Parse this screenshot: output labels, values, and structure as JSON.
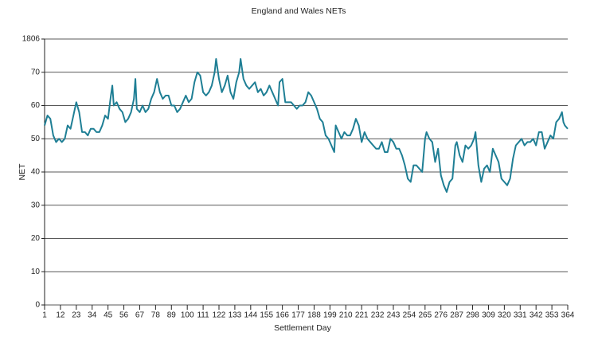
{
  "chart_data": {
    "type": "line",
    "title": "England and Wales NETs",
    "xlabel": "Settlement Day",
    "ylabel": "NET",
    "x": [
      1,
      3,
      5,
      7,
      9,
      11,
      13,
      15,
      17,
      19,
      21,
      23,
      25,
      27,
      29,
      31,
      33,
      35,
      37,
      39,
      41,
      43,
      45,
      47,
      48,
      49,
      51,
      53,
      55,
      57,
      59,
      61,
      63,
      64,
      65,
      67,
      69,
      71,
      73,
      75,
      77,
      79,
      81,
      83,
      85,
      87,
      89,
      91,
      93,
      95,
      97,
      99,
      101,
      103,
      105,
      107,
      109,
      111,
      113,
      115,
      117,
      119,
      120,
      122,
      124,
      126,
      128,
      130,
      132,
      134,
      136,
      137,
      139,
      141,
      143,
      145,
      147,
      149,
      151,
      153,
      155,
      157,
      159,
      161,
      163,
      164,
      166,
      168,
      170,
      172,
      174,
      176,
      178,
      180,
      182,
      184,
      186,
      188,
      190,
      192,
      194,
      196,
      198,
      200,
      202,
      203,
      205,
      207,
      209,
      211,
      213,
      215,
      217,
      219,
      221,
      223,
      225,
      227,
      229,
      231,
      233,
      235,
      237,
      239,
      241,
      243,
      245,
      247,
      249,
      251,
      253,
      255,
      257,
      259,
      261,
      263,
      265,
      266,
      268,
      270,
      272,
      274,
      276,
      278,
      280,
      282,
      284,
      286,
      287,
      289,
      291,
      293,
      295,
      297,
      299,
      300,
      302,
      304,
      306,
      308,
      310,
      312,
      314,
      316,
      318,
      320,
      322,
      324,
      326,
      328,
      330,
      332,
      334,
      336,
      338,
      340,
      342,
      344,
      346,
      348,
      350,
      352,
      354,
      356,
      358,
      360,
      361,
      362,
      364
    ],
    "series": [
      {
        "name": "NET",
        "color": "#1f7f95",
        "values": [
          54,
          57,
          56,
          51,
          49,
          50,
          49,
          50,
          54,
          53,
          57,
          61,
          58,
          52,
          52,
          51,
          53,
          53,
          52,
          52,
          54,
          57,
          56,
          63,
          66,
          60,
          61,
          59,
          58,
          55,
          56,
          58,
          62,
          68,
          59,
          58,
          60,
          58,
          59,
          62,
          64,
          68,
          64,
          62,
          63,
          63,
          60,
          60,
          58,
          59,
          61,
          63,
          61,
          62,
          67,
          70,
          69,
          64,
          63,
          64,
          66,
          70,
          74,
          68,
          64,
          66,
          69,
          64,
          62,
          67,
          70,
          74,
          68,
          66,
          65,
          66,
          67,
          64,
          65,
          63,
          64,
          66,
          64,
          62,
          60,
          67,
          68,
          61,
          61,
          61,
          60,
          59,
          60,
          60,
          61,
          64,
          63,
          61,
          59,
          56,
          55,
          51,
          50,
          48,
          46,
          54,
          52,
          50,
          52,
          51,
          51,
          53,
          56,
          54,
          49,
          52,
          50,
          49,
          48,
          47,
          47,
          49,
          46,
          46,
          50,
          49,
          47,
          47,
          45,
          42,
          38,
          37,
          42,
          42,
          41,
          40,
          50,
          52,
          50,
          49,
          43,
          47,
          39,
          36,
          34,
          37,
          38,
          48,
          49,
          45,
          43,
          48,
          47,
          48,
          50,
          52,
          42,
          37,
          41,
          42,
          40,
          47,
          45,
          43,
          38,
          37,
          36,
          38,
          44,
          48,
          49,
          50,
          48,
          49,
          49,
          50,
          48,
          52,
          52,
          47,
          49,
          51,
          50,
          55,
          56,
          58,
          55,
          54,
          53
        ]
      }
    ],
    "xlim": [
      1,
      364
    ],
    "xticks": [
      1,
      12,
      23,
      34,
      45,
      56,
      67,
      78,
      89,
      100,
      111,
      122,
      133,
      144,
      155,
      166,
      177,
      188,
      199,
      210,
      221,
      232,
      243,
      254,
      265,
      276,
      287,
      298,
      309,
      320,
      331,
      342,
      353,
      364
    ],
    "ylim": [
      0,
      80
    ],
    "yticks": [
      0,
      10,
      20,
      30,
      40,
      50,
      60,
      70,
      {
        "value": 80,
        "label": "1806"
      }
    ],
    "grid": true
  }
}
